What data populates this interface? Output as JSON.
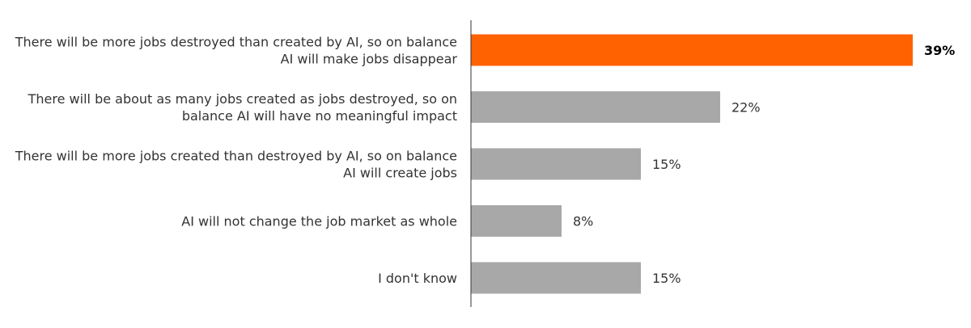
{
  "chart_data": {
    "type": "bar",
    "orientation": "horizontal",
    "categories": [
      [
        "There will be more jobs destroyed than created by AI, so on balance",
        "AI will make jobs disappear"
      ],
      [
        "There will be about as many jobs created as jobs destroyed, so on",
        "balance AI will have no meaningful impact"
      ],
      [
        "There will be more jobs created than destroyed by AI, so on balance",
        "AI will create jobs"
      ],
      [
        "AI will not change the job market as whole"
      ],
      [
        "I don't know"
      ]
    ],
    "values": [
      39,
      22,
      15,
      8,
      15
    ],
    "value_labels": [
      "39%",
      "22%",
      "15%",
      "8%",
      "15%"
    ],
    "highlight_index": 0,
    "colors": {
      "highlight": "#FF6200",
      "default": "#A8A8A8",
      "axis": "#333333"
    },
    "xlim": [
      0,
      39
    ],
    "grid": false,
    "legend": "none"
  }
}
